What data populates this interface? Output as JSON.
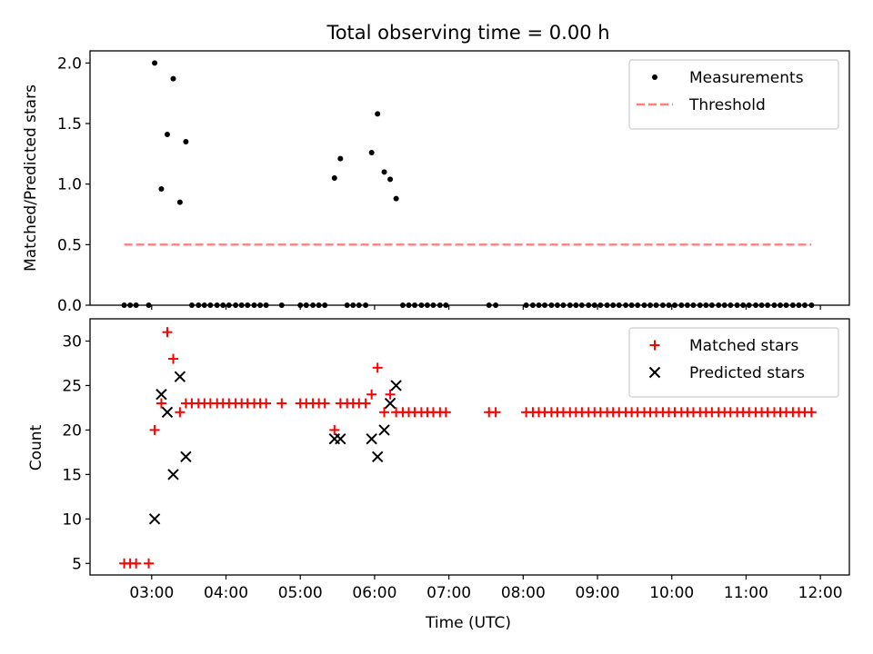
{
  "figure": {
    "title": "Total observing time = 0.00 h",
    "xlabel": "Time (UTC)",
    "xticks": [
      "03:00",
      "04:00",
      "05:00",
      "06:00",
      "07:00",
      "08:00",
      "09:00",
      "10:00",
      "11:00",
      "12:00"
    ]
  },
  "chart_data": [
    {
      "type": "scatter",
      "ylabel": "Matched/Predicted stars",
      "xlim": [
        2.17,
        12.39
      ],
      "ylim": [
        0,
        2.1
      ],
      "yticks": [
        "0.0",
        "0.5",
        "1.0",
        "1.5",
        "2.0"
      ],
      "legend_position": "top-right",
      "series": [
        {
          "name": "Measurements",
          "marker": "dot",
          "color": "#000000",
          "x": [
            2.63,
            2.71,
            2.79,
            2.96,
            3.04,
            3.13,
            3.21,
            3.29,
            3.38,
            3.46,
            3.54,
            3.63,
            3.71,
            3.79,
            3.88,
            3.96,
            4.04,
            4.13,
            4.21,
            4.29,
            4.38,
            4.46,
            4.54,
            4.75,
            5.0,
            5.08,
            5.17,
            5.25,
            5.33,
            5.46,
            5.54,
            5.63,
            5.71,
            5.79,
            5.88,
            5.96,
            6.04,
            6.13,
            6.21,
            6.29,
            6.38,
            6.46,
            6.54,
            6.63,
            6.71,
            6.79,
            6.88,
            6.96,
            7.54,
            7.63,
            8.04,
            8.13,
            8.21,
            8.29,
            8.38,
            8.46,
            8.54,
            8.63,
            8.71,
            8.79,
            8.88,
            8.96,
            9.04,
            9.13,
            9.21,
            9.29,
            9.38,
            9.46,
            9.54,
            9.63,
            9.71,
            9.79,
            9.88,
            9.96,
            10.04,
            10.13,
            10.21,
            10.29,
            10.38,
            10.46,
            10.54,
            10.63,
            10.71,
            10.79,
            10.88,
            10.96,
            11.04,
            11.13,
            11.21,
            11.29,
            11.38,
            11.46,
            11.54,
            11.63,
            11.71,
            11.79,
            11.88
          ],
          "y": [
            0,
            0,
            0,
            0,
            2.0,
            0.96,
            1.41,
            1.87,
            0.85,
            1.35,
            0,
            0,
            0,
            0,
            0,
            0,
            0,
            0,
            0,
            0,
            0,
            0,
            0,
            0,
            0,
            0,
            0,
            0,
            0,
            1.05,
            1.21,
            0,
            0,
            0,
            0,
            1.26,
            1.58,
            1.1,
            1.04,
            0.88,
            0,
            0,
            0,
            0,
            0,
            0,
            0,
            0,
            0,
            0,
            0,
            0,
            0,
            0,
            0,
            0,
            0,
            0,
            0,
            0,
            0,
            0,
            0,
            0,
            0,
            0,
            0,
            0,
            0,
            0,
            0,
            0,
            0,
            0,
            0,
            0,
            0,
            0,
            0,
            0,
            0,
            0,
            0,
            0,
            0,
            0,
            0,
            0,
            0,
            0,
            0,
            0,
            0,
            0,
            0,
            0,
            0
          ]
        },
        {
          "name": "Threshold",
          "marker": "dashed-line",
          "color": "#ff7f7f",
          "x": [
            2.63,
            11.88
          ],
          "y": [
            0.5,
            0.5
          ]
        }
      ]
    },
    {
      "type": "scatter",
      "ylabel": "Count",
      "xlim": [
        2.17,
        12.39
      ],
      "ylim": [
        3.7,
        32.5
      ],
      "yticks": [
        "5",
        "10",
        "15",
        "20",
        "25",
        "30"
      ],
      "legend_position": "top-right",
      "series": [
        {
          "name": "Matched stars",
          "marker": "plus",
          "color": "#ff0000",
          "x": [
            2.63,
            2.71,
            2.79,
            2.96,
            3.04,
            3.13,
            3.21,
            3.29,
            3.38,
            3.46,
            3.54,
            3.63,
            3.71,
            3.79,
            3.88,
            3.96,
            4.04,
            4.13,
            4.21,
            4.29,
            4.38,
            4.46,
            4.54,
            4.75,
            5.0,
            5.08,
            5.17,
            5.25,
            5.33,
            5.46,
            5.54,
            5.63,
            5.71,
            5.79,
            5.88,
            5.96,
            6.04,
            6.13,
            6.21,
            6.29,
            6.38,
            6.46,
            6.54,
            6.63,
            6.71,
            6.79,
            6.88,
            6.96,
            7.54,
            7.63,
            8.04,
            8.13,
            8.21,
            8.29,
            8.38,
            8.46,
            8.54,
            8.63,
            8.71,
            8.79,
            8.88,
            8.96,
            9.04,
            9.13,
            9.21,
            9.29,
            9.38,
            9.46,
            9.54,
            9.63,
            9.71,
            9.79,
            9.88,
            9.96,
            10.04,
            10.13,
            10.21,
            10.29,
            10.38,
            10.46,
            10.54,
            10.63,
            10.71,
            10.79,
            10.88,
            10.96,
            11.04,
            11.13,
            11.21,
            11.29,
            11.38,
            11.46,
            11.54,
            11.63,
            11.71,
            11.79,
            11.88
          ],
          "y": [
            5,
            5,
            5,
            5,
            20,
            23,
            31,
            28,
            22,
            23,
            23,
            23,
            23,
            23,
            23,
            23,
            23,
            23,
            23,
            23,
            23,
            23,
            23,
            23,
            23,
            23,
            23,
            23,
            23,
            20,
            23,
            23,
            23,
            23,
            23,
            24,
            27,
            22,
            24,
            22,
            22,
            22,
            22,
            22,
            22,
            22,
            22,
            22,
            22,
            22,
            22,
            22,
            22,
            22,
            22,
            22,
            22,
            22,
            22,
            22,
            22,
            22,
            22,
            22,
            22,
            22,
            22,
            22,
            22,
            22,
            22,
            22,
            22,
            22,
            22,
            22,
            22,
            22,
            22,
            22,
            22,
            22,
            22,
            22,
            22,
            22,
            22,
            22,
            22,
            22,
            22,
            22,
            22,
            22,
            22,
            22,
            22
          ]
        },
        {
          "name": "Predicted stars",
          "marker": "x",
          "color": "#000000",
          "x": [
            3.04,
            3.13,
            3.21,
            3.29,
            3.38,
            3.46,
            5.46,
            5.54,
            5.96,
            6.04,
            6.13,
            6.21,
            6.29
          ],
          "y": [
            10,
            24,
            22,
            15,
            26,
            17,
            19,
            19,
            19,
            17,
            20,
            23,
            25
          ]
        }
      ]
    }
  ]
}
